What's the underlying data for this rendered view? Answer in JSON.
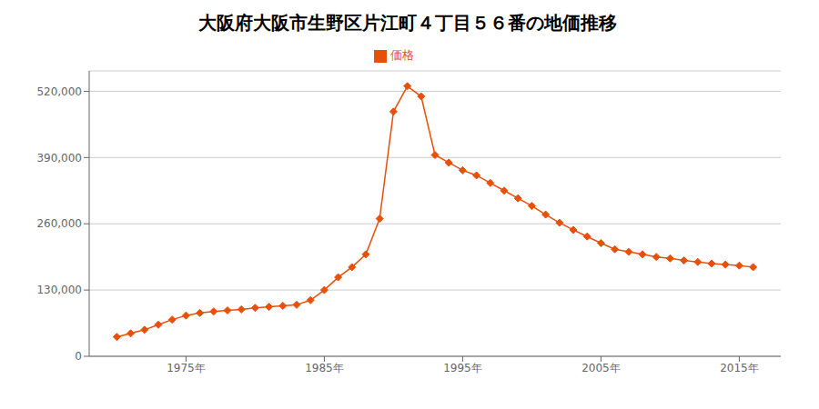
{
  "chart_data": {
    "type": "line",
    "title": "大阪府大阪市生野区片江町４丁目５６番の地価推移",
    "x": [
      1970,
      1971,
      1972,
      1973,
      1974,
      1975,
      1976,
      1977,
      1978,
      1979,
      1980,
      1981,
      1982,
      1983,
      1984,
      1985,
      1986,
      1987,
      1988,
      1989,
      1990,
      1991,
      1992,
      1993,
      1994,
      1995,
      1996,
      1997,
      1998,
      1999,
      2000,
      2001,
      2002,
      2003,
      2004,
      2005,
      2006,
      2007,
      2008,
      2009,
      2010,
      2011,
      2012,
      2013,
      2014,
      2015,
      2016
    ],
    "series": [
      {
        "name": "価格",
        "color": "#E8500A",
        "marker": "diamond",
        "values": [
          38000,
          45000,
          52000,
          62000,
          72000,
          80000,
          85000,
          88000,
          90000,
          92000,
          95000,
          97000,
          99000,
          101000,
          110000,
          130000,
          155000,
          175000,
          200000,
          270000,
          480000,
          530000,
          510000,
          395000,
          380000,
          365000,
          355000,
          340000,
          325000,
          310000,
          295000,
          278000,
          262000,
          248000,
          235000,
          222000,
          210000,
          205000,
          200000,
          195000,
          192000,
          188000,
          185000,
          182000,
          180000,
          178000,
          175000
        ]
      }
    ],
    "xlim": [
      1968,
      2018
    ],
    "xticks": [
      {
        "value": 1975,
        "label": "1975年"
      },
      {
        "value": 1985,
        "label": "1985年"
      },
      {
        "value": 1995,
        "label": "1995年"
      },
      {
        "value": 2005,
        "label": "2005年"
      },
      {
        "value": 2015,
        "label": "2015年"
      }
    ],
    "ylim": [
      0,
      560000
    ],
    "yticks": [
      0,
      {
        "value": 130000,
        "label": "130,000"
      },
      {
        "value": 260000,
        "label": "260,000"
      },
      {
        "value": 390000,
        "label": "390,000"
      },
      {
        "value": 520000,
        "label": "520,000"
      }
    ],
    "grid": "y",
    "legend": "top"
  }
}
